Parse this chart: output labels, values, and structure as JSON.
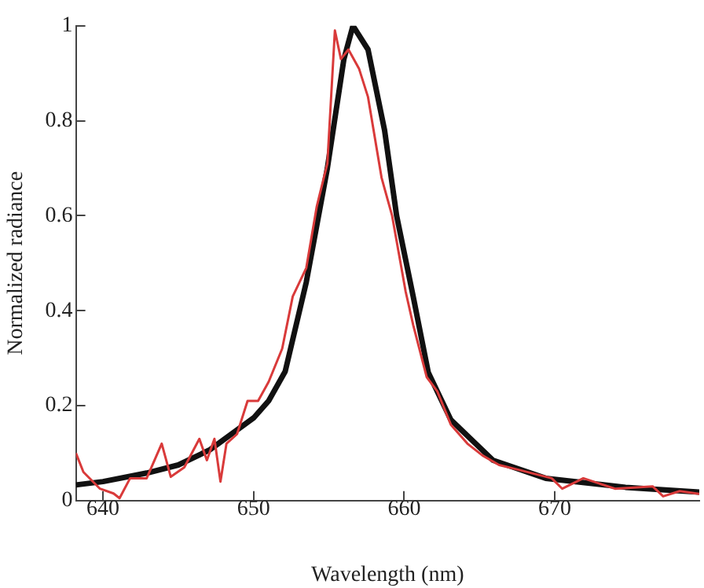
{
  "chart_data": {
    "type": "line",
    "xlabel": "Wavelength (nm)",
    "ylabel": "Normalized radiance",
    "xlim": [
      638.2,
      679.6
    ],
    "xticks": [
      640,
      650,
      660,
      670
    ],
    "ylim": [
      0,
      1
    ],
    "yticks": [
      0,
      0.2,
      0.4,
      0.6,
      0.8,
      1
    ],
    "grid": false,
    "legend": false,
    "marker": "none",
    "line_style": "solid",
    "series": [
      {
        "color": "#d93a3a",
        "x": [
          638.2,
          638.7,
          639.8,
          640.7,
          641.1,
          641.8,
          642.9,
          643.9,
          644.5,
          645.4,
          646.4,
          646.9,
          647.4,
          647.8,
          648.2,
          648.9,
          649.6,
          650.3,
          651.0,
          651.9,
          652.6,
          653.5,
          654.2,
          654.9,
          655.4,
          655.8,
          656.3,
          657.0,
          657.6,
          658.5,
          659.2,
          660.1,
          660.6,
          661.5,
          662.2,
          663.1,
          664.2,
          665.2,
          666.3,
          667.7,
          669.8,
          670.5,
          671.9,
          674.0,
          676.5,
          677.2,
          678.3,
          679.6
        ],
        "values": [
          0.1,
          0.06,
          0.025,
          0.015,
          0.005,
          0.047,
          0.047,
          0.12,
          0.05,
          0.07,
          0.13,
          0.085,
          0.13,
          0.04,
          0.12,
          0.14,
          0.21,
          0.21,
          0.25,
          0.32,
          0.43,
          0.49,
          0.62,
          0.71,
          0.99,
          0.93,
          0.95,
          0.91,
          0.85,
          0.68,
          0.6,
          0.44,
          0.37,
          0.26,
          0.23,
          0.16,
          0.12,
          0.095,
          0.075,
          0.064,
          0.047,
          0.025,
          0.047,
          0.025,
          0.03,
          0.009,
          0.02,
          0.014
        ]
      },
      {
        "color": "#111111",
        "x": [
          638.2,
          640,
          642.9,
          645,
          647.1,
          650.0,
          651,
          652.1,
          653.5,
          654.9,
          656.0,
          656.6,
          657.6,
          658.7,
          659.5,
          660.6,
          661.6,
          663.1,
          665.9,
          669.4,
          674.7,
          679.6
        ],
        "values": [
          0.033,
          0.04,
          0.058,
          0.075,
          0.107,
          0.174,
          0.21,
          0.272,
          0.46,
          0.7,
          0.93,
          1.0,
          0.95,
          0.78,
          0.6,
          0.43,
          0.27,
          0.17,
          0.085,
          0.047,
          0.028,
          0.018
        ]
      }
    ]
  }
}
